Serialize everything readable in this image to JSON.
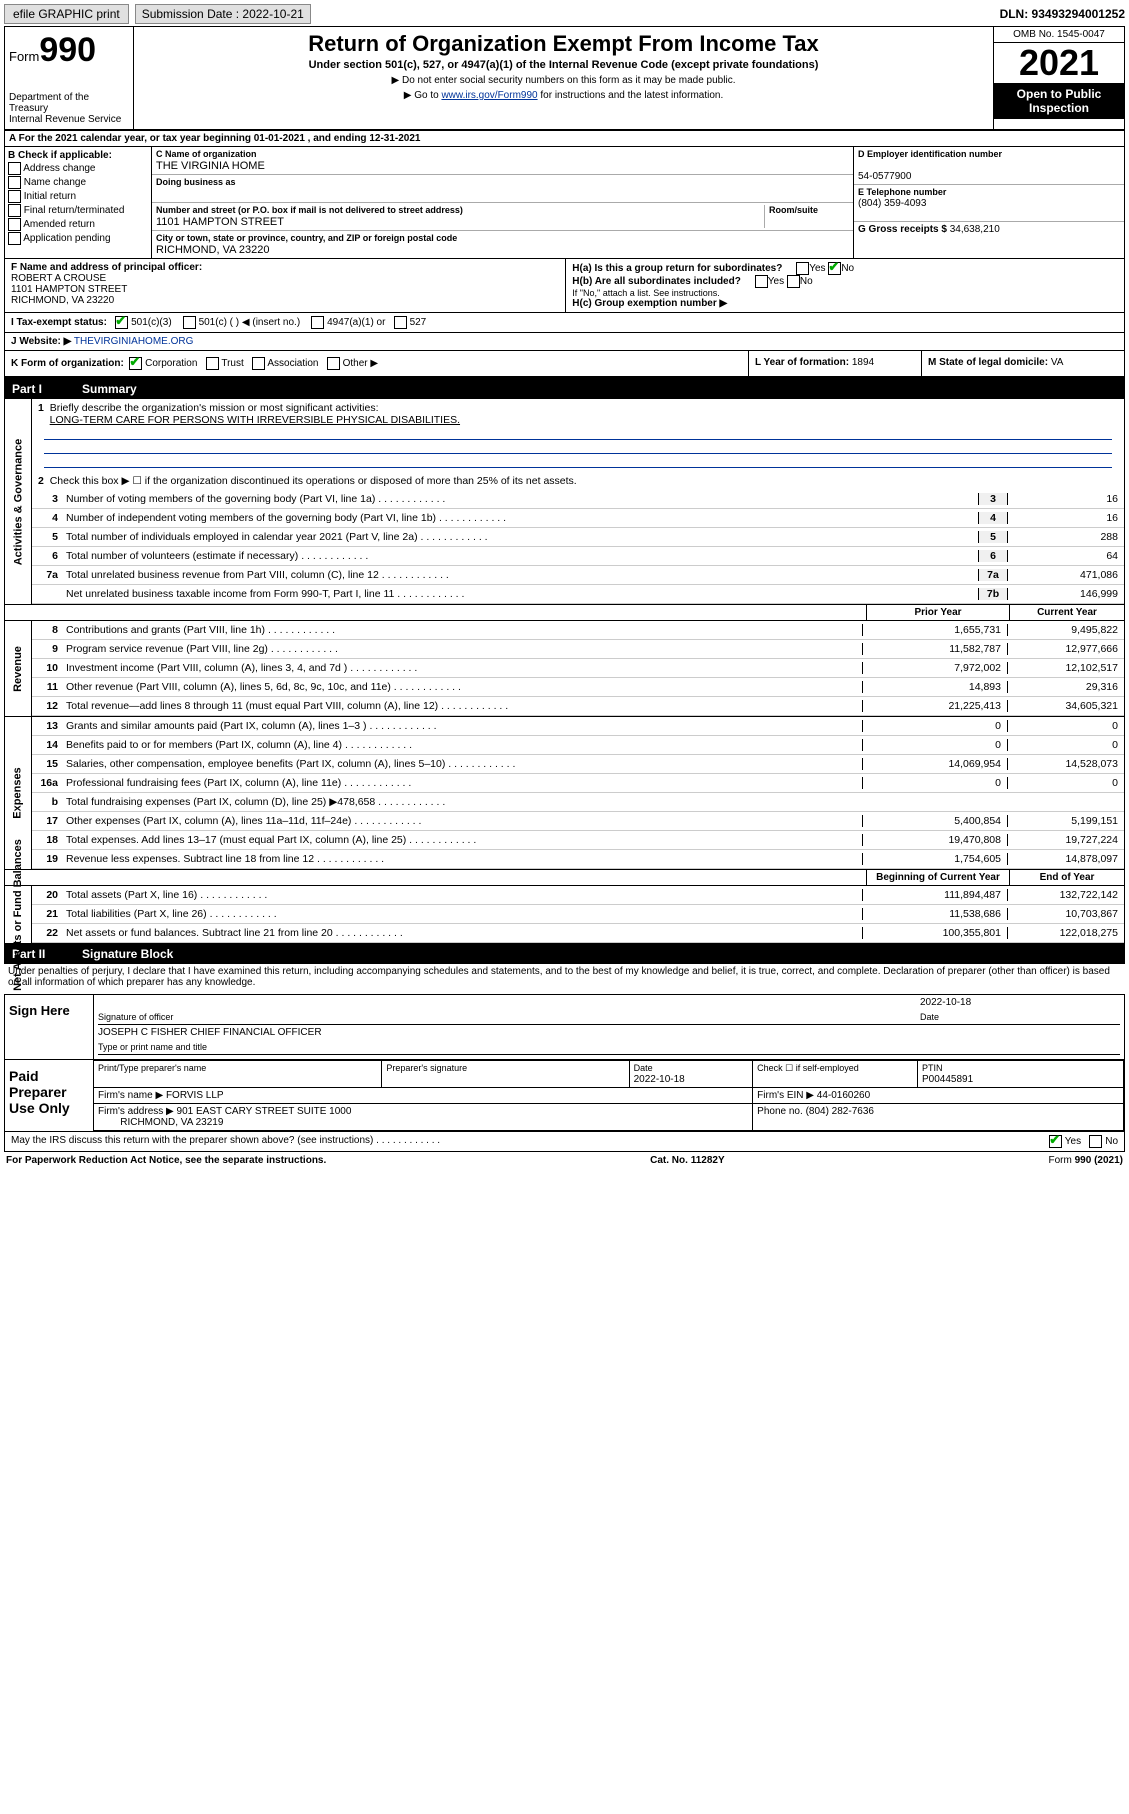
{
  "topbar": {
    "efile": "efile GRAPHIC print",
    "sub_label": "Submission Date : 2022-10-21",
    "dln": "DLN: 93493294001252"
  },
  "header": {
    "form_label": "Form",
    "form_num": "990",
    "dept": "Department of the Treasury\nInternal Revenue Service",
    "title": "Return of Organization Exempt From Income Tax",
    "sub": "Under section 501(c), 527, or 4947(a)(1) of the Internal Revenue Code (except private foundations)",
    "note1": "▶ Do not enter social security numbers on this form as it may be made public.",
    "note2_pre": "▶ Go to ",
    "note2_link": "www.irs.gov/Form990",
    "note2_post": " for instructions and the latest information.",
    "omb": "OMB No. 1545-0047",
    "year": "2021",
    "open": "Open to Public Inspection"
  },
  "line_a": "A For the 2021 calendar year, or tax year beginning 01-01-2021   , and ending 12-31-2021",
  "col_b": {
    "title": "B Check if applicable:",
    "opts": [
      "Address change",
      "Name change",
      "Initial return",
      "Final return/terminated",
      "Amended return",
      "Application pending"
    ]
  },
  "col_c": {
    "name_lbl": "C Name of organization",
    "name": "THE VIRGINIA HOME",
    "dba_lbl": "Doing business as",
    "dba": "",
    "street_lbl": "Number and street (or P.O. box if mail is not delivered to street address)",
    "street": "1101 HAMPTON STREET",
    "room_lbl": "Room/suite",
    "city_lbl": "City or town, state or province, country, and ZIP or foreign postal code",
    "city": "RICHMOND, VA  23220"
  },
  "col_de": {
    "d_lbl": "D Employer identification number",
    "d_val": "54-0577900",
    "e_lbl": "E Telephone number",
    "e_val": "(804) 359-4093",
    "g_lbl": "G Gross receipts $",
    "g_val": "34,638,210"
  },
  "f": {
    "lbl": "F Name and address of principal officer:",
    "name": "ROBERT A CROUSE",
    "addr1": "1101 HAMPTON STREET",
    "addr2": "RICHMOND, VA  23220"
  },
  "h": {
    "a": "H(a)  Is this a group return for subordinates?",
    "a_no": "No",
    "b": "H(b)  Are all subordinates included?",
    "b_note": "If \"No,\" attach a list. See instructions.",
    "c": "H(c)  Group exemption number ▶"
  },
  "i": {
    "label": "I    Tax-exempt status:",
    "opts": [
      "501(c)(3)",
      "501(c) (  ) ◀ (insert no.)",
      "4947(a)(1) or",
      "527"
    ]
  },
  "j": {
    "label": "J   Website: ▶",
    "val": "THEVIRGINIAHOME.ORG"
  },
  "k": {
    "label": "K Form of organization:",
    "opts": [
      "Corporation",
      "Trust",
      "Association",
      "Other ▶"
    ]
  },
  "l": {
    "label": "L Year of formation:",
    "val": "1894"
  },
  "m": {
    "label": "M State of legal domicile:",
    "val": "VA"
  },
  "part1": {
    "no": "Part I",
    "title": "Summary"
  },
  "summary": {
    "gov": {
      "label": "Activities & Governance",
      "q1": "Briefly describe the organization's mission or most significant activities:",
      "q1val": "LONG-TERM CARE FOR PERSONS WITH IRREVERSIBLE PHYSICAL DISABILITIES.",
      "q2": "Check this box ▶ ☐  if the organization discontinued its operations or disposed of more than 25% of its net assets.",
      "lines": [
        {
          "n": "3",
          "t": "Number of voting members of the governing body (Part VI, line 1a)",
          "box": "3",
          "v": "16"
        },
        {
          "n": "4",
          "t": "Number of independent voting members of the governing body (Part VI, line 1b)",
          "box": "4",
          "v": "16"
        },
        {
          "n": "5",
          "t": "Total number of individuals employed in calendar year 2021 (Part V, line 2a)",
          "box": "5",
          "v": "288"
        },
        {
          "n": "6",
          "t": "Total number of volunteers (estimate if necessary)",
          "box": "6",
          "v": "64"
        },
        {
          "n": "7a",
          "t": "Total unrelated business revenue from Part VIII, column (C), line 12",
          "box": "7a",
          "v": "471,086"
        },
        {
          "n": "",
          "t": "Net unrelated business taxable income from Form 990-T, Part I, line 11",
          "box": "7b",
          "v": "146,999"
        }
      ]
    },
    "cols": {
      "prior": "Prior Year",
      "current": "Current Year",
      "begin": "Beginning of Current Year",
      "end": "End of Year"
    },
    "rev": {
      "label": "Revenue",
      "lines": [
        {
          "n": "8",
          "t": "Contributions and grants (Part VIII, line 1h)",
          "p": "1,655,731",
          "c": "9,495,822"
        },
        {
          "n": "9",
          "t": "Program service revenue (Part VIII, line 2g)",
          "p": "11,582,787",
          "c": "12,977,666"
        },
        {
          "n": "10",
          "t": "Investment income (Part VIII, column (A), lines 3, 4, and 7d )",
          "p": "7,972,002",
          "c": "12,102,517"
        },
        {
          "n": "11",
          "t": "Other revenue (Part VIII, column (A), lines 5, 6d, 8c, 9c, 10c, and 11e)",
          "p": "14,893",
          "c": "29,316"
        },
        {
          "n": "12",
          "t": "Total revenue—add lines 8 through 11 (must equal Part VIII, column (A), line 12)",
          "p": "21,225,413",
          "c": "34,605,321"
        }
      ]
    },
    "exp": {
      "label": "Expenses",
      "lines": [
        {
          "n": "13",
          "t": "Grants and similar amounts paid (Part IX, column (A), lines 1–3 )",
          "p": "0",
          "c": "0"
        },
        {
          "n": "14",
          "t": "Benefits paid to or for members (Part IX, column (A), line 4)",
          "p": "0",
          "c": "0"
        },
        {
          "n": "15",
          "t": "Salaries, other compensation, employee benefits (Part IX, column (A), lines 5–10)",
          "p": "14,069,954",
          "c": "14,528,073"
        },
        {
          "n": "16a",
          "t": "Professional fundraising fees (Part IX, column (A), line 11e)",
          "p": "0",
          "c": "0"
        },
        {
          "n": "b",
          "t": "Total fundraising expenses (Part IX, column (D), line 25) ▶478,658",
          "p": "",
          "c": "",
          "grey": true
        },
        {
          "n": "17",
          "t": "Other expenses (Part IX, column (A), lines 11a–11d, 11f–24e)",
          "p": "5,400,854",
          "c": "5,199,151"
        },
        {
          "n": "18",
          "t": "Total expenses. Add lines 13–17 (must equal Part IX, column (A), line 25)",
          "p": "19,470,808",
          "c": "19,727,224"
        },
        {
          "n": "19",
          "t": "Revenue less expenses. Subtract line 18 from line 12",
          "p": "1,754,605",
          "c": "14,878,097"
        }
      ]
    },
    "net": {
      "label": "Net Assets or Fund Balances",
      "lines": [
        {
          "n": "20",
          "t": "Total assets (Part X, line 16)",
          "p": "111,894,487",
          "c": "132,722,142"
        },
        {
          "n": "21",
          "t": "Total liabilities (Part X, line 26)",
          "p": "11,538,686",
          "c": "10,703,867"
        },
        {
          "n": "22",
          "t": "Net assets or fund balances. Subtract line 21 from line 20",
          "p": "100,355,801",
          "c": "122,018,275"
        }
      ]
    }
  },
  "part2": {
    "no": "Part II",
    "title": "Signature Block"
  },
  "sig_decl": "Under penalties of perjury, I declare that I have examined this return, including accompanying schedules and statements, and to the best of my knowledge and belief, it is true, correct, and complete. Declaration of preparer (other than officer) is based on all information of which preparer has any knowledge.",
  "sign_here": {
    "label": "Sign Here",
    "date": "2022-10-18",
    "sig_lbl": "Signature of officer",
    "date_lbl": "Date",
    "name": "JOSEPH C FISHER  CHIEF FINANCIAL OFFICER",
    "name_lbl": "Type or print name and title"
  },
  "paid": {
    "label": "Paid Preparer Use Only",
    "h1": "Print/Type preparer's name",
    "h2": "Preparer's signature",
    "h3": "Date",
    "h4": "Check ☐ if self-employed",
    "h5": "PTIN",
    "date": "2022-10-18",
    "ptin": "P00445891",
    "firm_lbl": "Firm's name   ▶",
    "firm": "FORVIS LLP",
    "ein_lbl": "Firm's EIN ▶",
    "ein": "44-0160260",
    "addr_lbl": "Firm's address ▶",
    "addr": "901 EAST CARY STREET SUITE 1000",
    "addr2": "RICHMOND, VA  23219",
    "phone_lbl": "Phone no.",
    "phone": "(804) 282-7636"
  },
  "discuss": "May the IRS discuss this return with the preparer shown above? (see instructions)",
  "footer": {
    "left": "For Paperwork Reduction Act Notice, see the separate instructions.",
    "mid": "Cat. No. 11282Y",
    "right": "Form 990 (2021)"
  }
}
